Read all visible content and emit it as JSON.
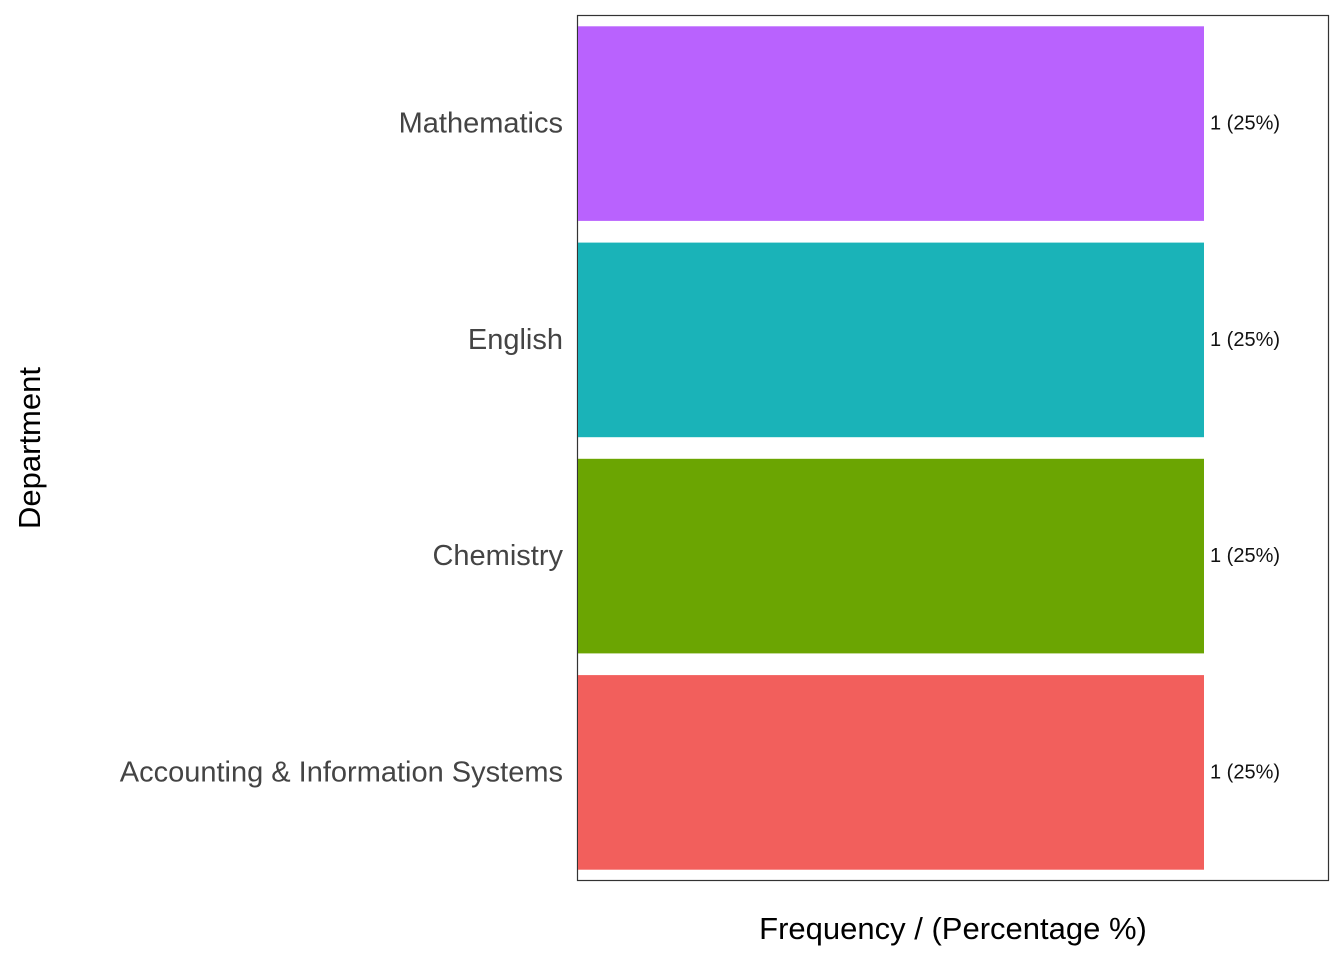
{
  "chart_data": {
    "type": "bar",
    "orientation": "horizontal",
    "categories": [
      "Accounting & Information Systems",
      "Chemistry",
      "English",
      "Mathematics"
    ],
    "values": [
      1,
      1,
      1,
      1
    ],
    "percentages": [
      25,
      25,
      25,
      25
    ],
    "data_labels": [
      "1 (25%)",
      "1 (25%)",
      "1 (25%)",
      "1 (25%)"
    ],
    "colors": [
      "#F25F5C",
      "#6BA502",
      "#1AB3B8",
      "#B962FE"
    ],
    "xlabel": "Frequency / (Percentage %)",
    "ylabel": "Department",
    "xlim": [
      0,
      1.2
    ],
    "grid": false,
    "legend": "none"
  }
}
